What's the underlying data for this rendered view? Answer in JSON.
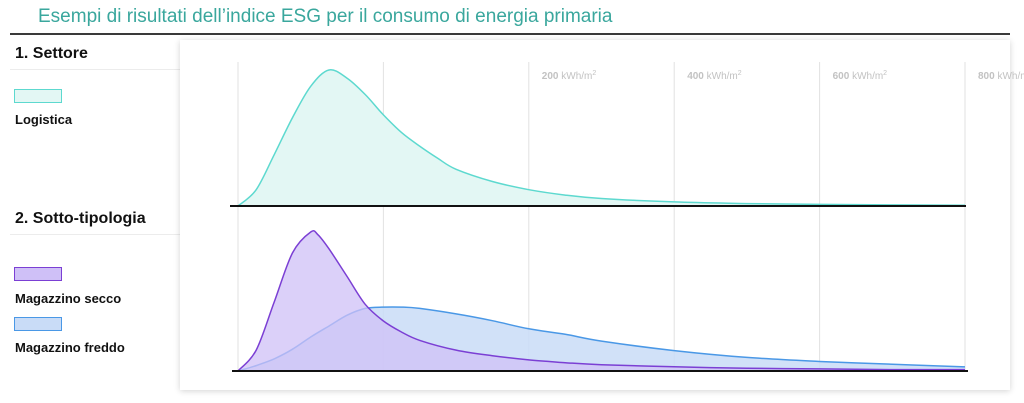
{
  "page_title": "Esempi di risultati dell’indice ESG per il consumo di energia primaria",
  "sections": {
    "sector": "1. Settore",
    "subtype": "2. Sotto-tipologia"
  },
  "legend": {
    "logistica": "Logistica",
    "magazzino_secco": "Magazzino secco",
    "magazzino_freddo": "Magazzino freddo"
  },
  "colors": {
    "title": "#3aa79d",
    "logistica_stroke": "#5dd9cf",
    "logistica_fill": "#e3f7f4",
    "secco_stroke": "#7b3fd4",
    "secco_fill": "#cfc0f7",
    "freddo_stroke": "#4a98e6",
    "freddo_fill": "#c9dcf7"
  },
  "chart_data": [
    {
      "type": "area",
      "x_unit": "kWh/m²",
      "xlim": [
        -200,
        800
      ],
      "tick_values": [
        200,
        400,
        600,
        800
      ],
      "tick_units": [
        "kWh/m",
        "kWh/m",
        "kWh/m",
        "kWh/m"
      ],
      "tick_sup": "2",
      "series": [
        {
          "name": "Logistica",
          "x": [
            -200,
            -175,
            -150,
            -125,
            -100,
            -75,
            -50,
            -25,
            0,
            25,
            50,
            75,
            100,
            150,
            200,
            250,
            300,
            400,
            500,
            600,
            700,
            800
          ],
          "y": [
            0,
            0.12,
            0.38,
            0.65,
            0.88,
            1.0,
            0.94,
            0.82,
            0.67,
            0.54,
            0.44,
            0.35,
            0.27,
            0.18,
            0.12,
            0.08,
            0.055,
            0.03,
            0.018,
            0.012,
            0.008,
            0.006
          ]
        }
      ]
    },
    {
      "type": "area",
      "x_unit": "kWh/m²",
      "xlim": [
        -200,
        800
      ],
      "series": [
        {
          "name": "Magazzino secco",
          "x": [
            -200,
            -175,
            -150,
            -125,
            -100,
            -90,
            -75,
            -50,
            -25,
            0,
            25,
            50,
            100,
            150,
            200,
            250,
            300,
            400,
            500,
            600,
            700,
            800
          ],
          "y": [
            0,
            0.15,
            0.5,
            0.85,
            1.0,
            0.98,
            0.88,
            0.68,
            0.48,
            0.36,
            0.28,
            0.22,
            0.15,
            0.11,
            0.08,
            0.06,
            0.045,
            0.03,
            0.02,
            0.015,
            0.01,
            0.01
          ]
        },
        {
          "name": "Magazzino freddo",
          "x": [
            -200,
            -175,
            -150,
            -125,
            -100,
            -75,
            -50,
            -25,
            0,
            25,
            50,
            100,
            150,
            200,
            250,
            300,
            400,
            500,
            600,
            700,
            800
          ],
          "y": [
            0,
            0.04,
            0.09,
            0.16,
            0.25,
            0.33,
            0.41,
            0.46,
            0.47,
            0.47,
            0.46,
            0.42,
            0.37,
            0.31,
            0.27,
            0.22,
            0.15,
            0.1,
            0.07,
            0.05,
            0.03
          ]
        }
      ]
    }
  ]
}
